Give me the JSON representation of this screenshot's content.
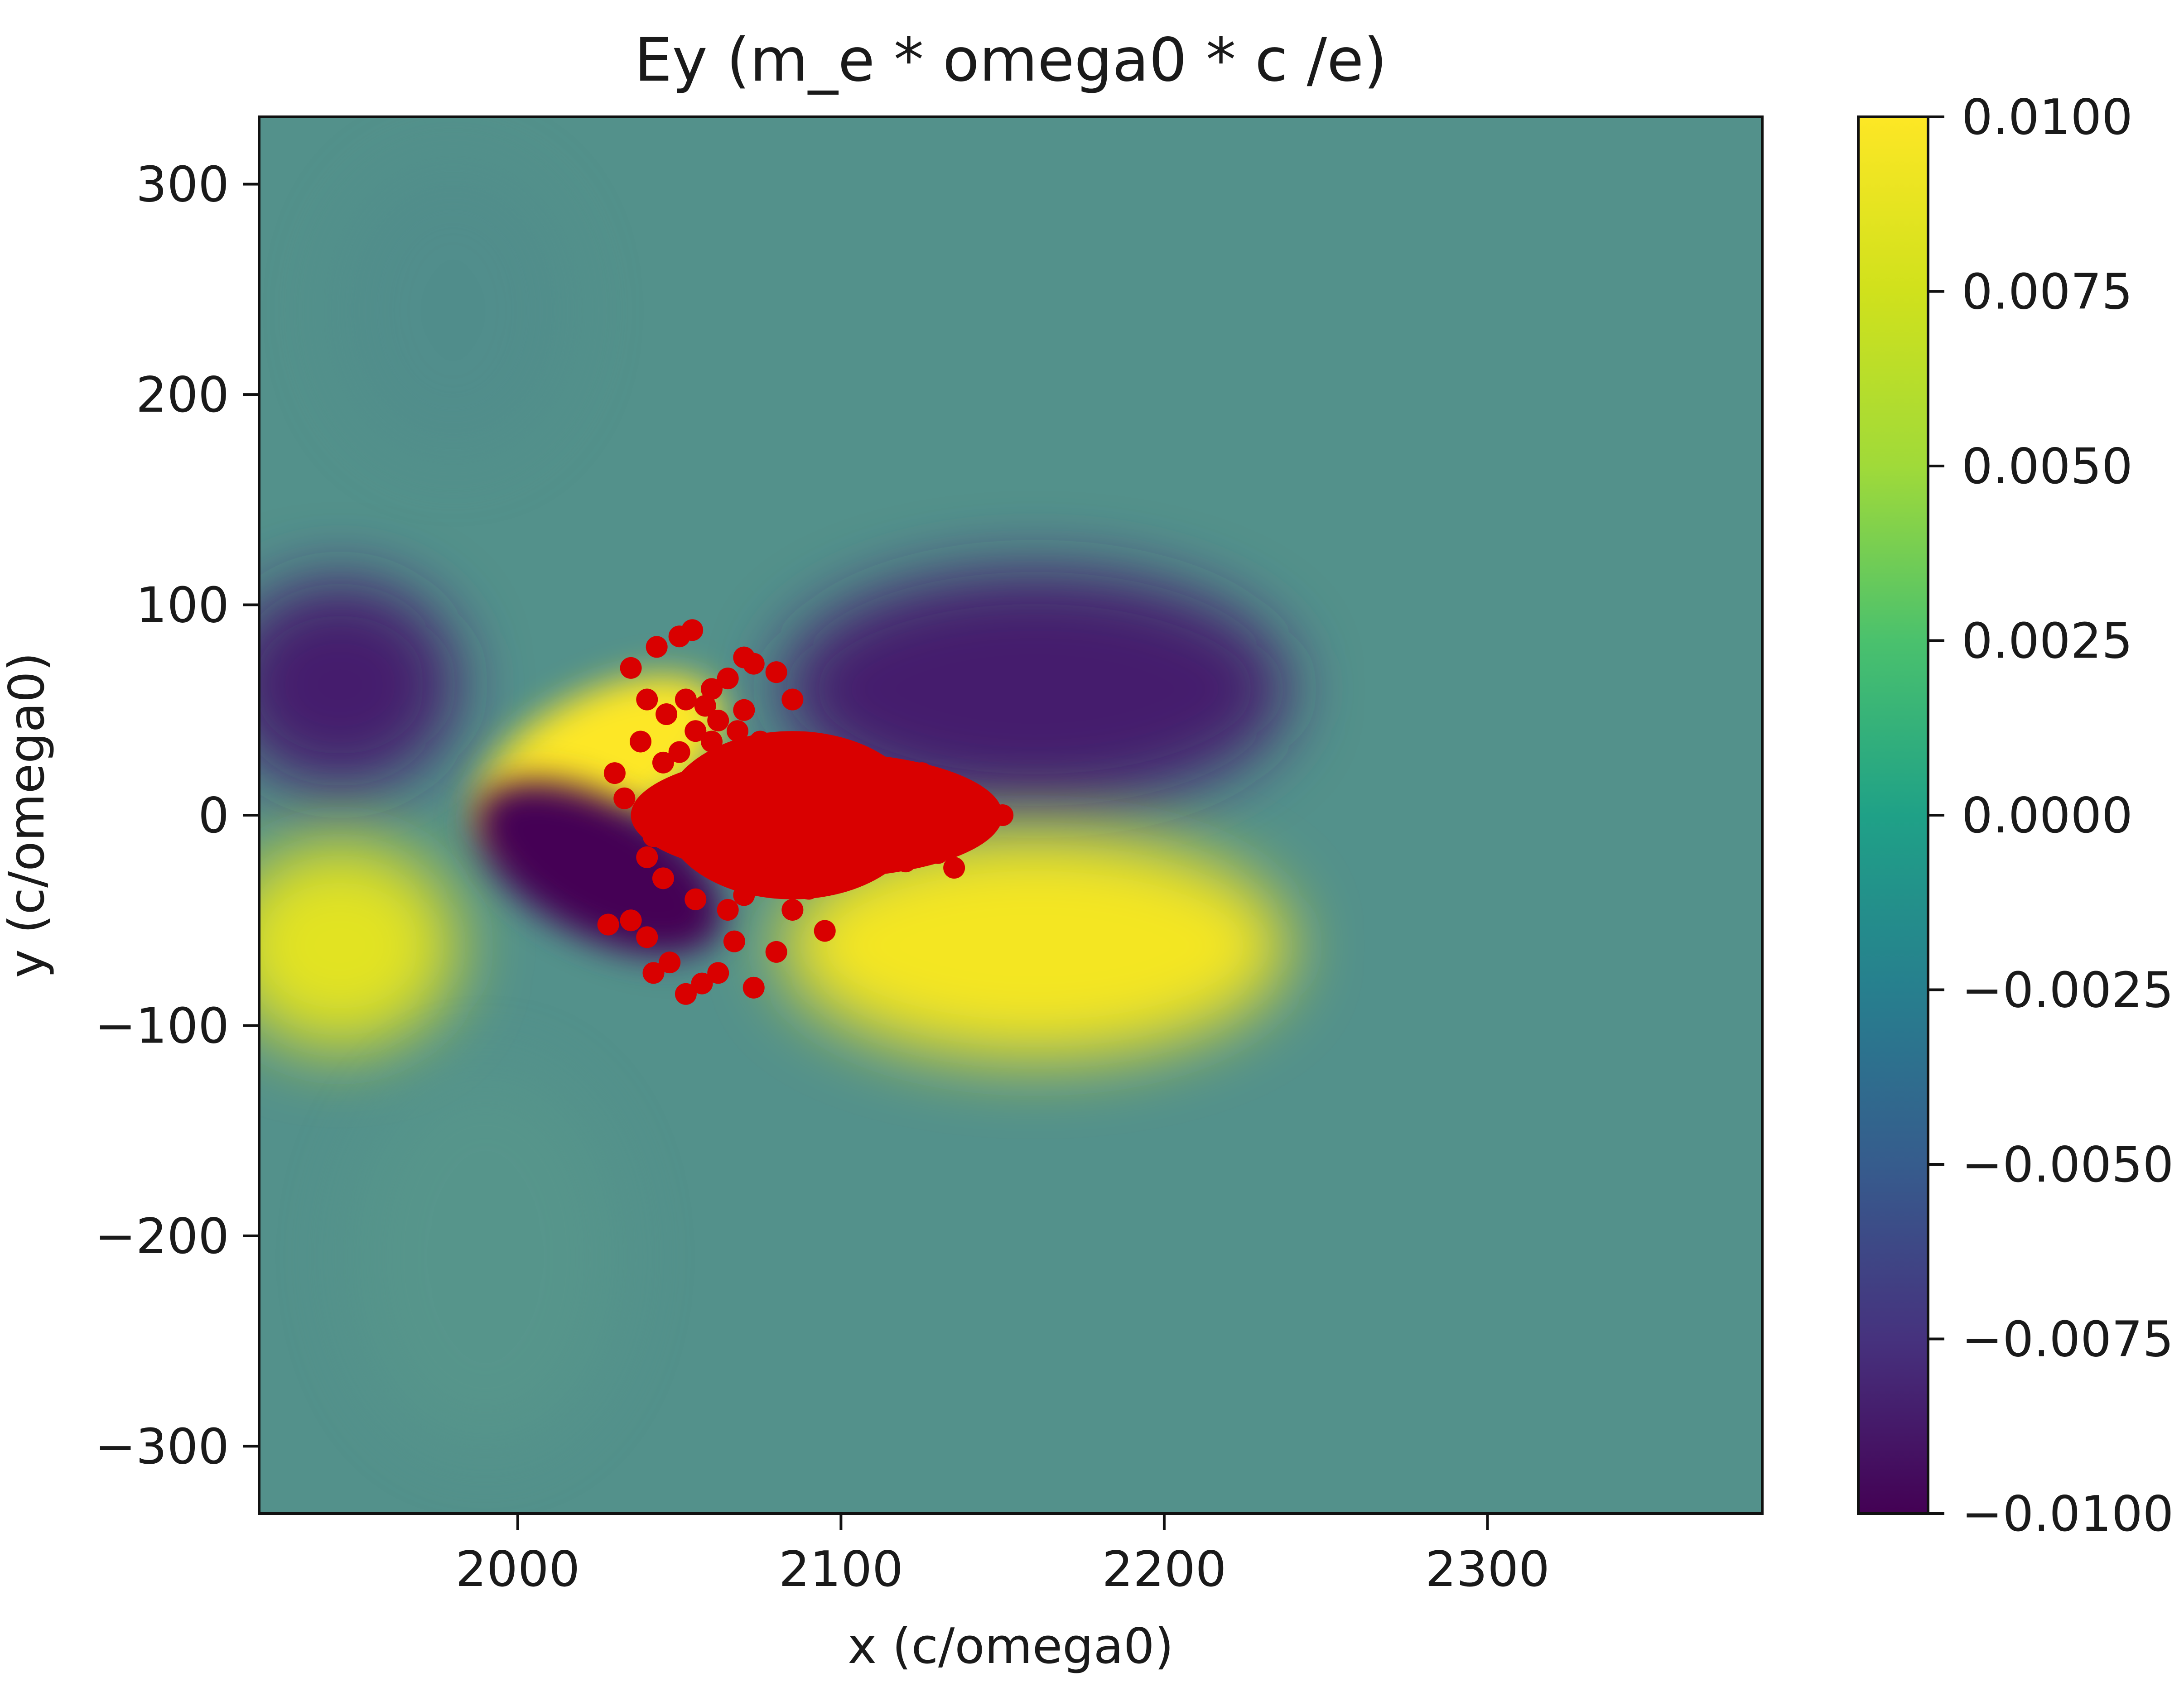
{
  "chart_data": {
    "type": "heatmap",
    "title": "Ey (m_e * omega0 * c /e)",
    "xlabel": "x (c/omega0)",
    "ylabel": "y (c/omega0)",
    "xlim": [
      1920,
      2385
    ],
    "ylim": [
      -332,
      332
    ],
    "x_ticks": [
      2000,
      2100,
      2200,
      2300
    ],
    "x_tick_labels": [
      "2000",
      "2100",
      "2200",
      "2300"
    ],
    "y_ticks": [
      300,
      200,
      100,
      0,
      -100,
      -200,
      -300
    ],
    "y_tick_labels": [
      "300",
      "200",
      "100",
      "0",
      "−100",
      "−200",
      "−300"
    ],
    "colormap": "viridis",
    "colorbar": {
      "range": [
        -0.01,
        0.01
      ],
      "ticks": [
        0.01,
        0.0075,
        0.005,
        0.0025,
        0.0,
        -0.0025,
        -0.005,
        -0.0075,
        -0.01
      ],
      "tick_labels": [
        "0.0100",
        "0.0075",
        "0.0050",
        "0.0025",
        "0.0000",
        "−0.0025",
        "−0.0050",
        "−0.0075",
        "−0.0100"
      ]
    },
    "field_features": [
      {
        "description": "negative lobe",
        "x": 1945,
        "y": 62,
        "value": -0.0085
      },
      {
        "description": "positive lobe",
        "x": 1945,
        "y": -62,
        "value": 0.0085
      },
      {
        "description": "negative lobe",
        "x": 2160,
        "y": 60,
        "value": -0.0085
      },
      {
        "description": "positive lobe",
        "x": 2160,
        "y": -62,
        "value": 0.0095
      },
      {
        "description": "positive wake",
        "x": 2025,
        "y": 25,
        "value": 0.01
      },
      {
        "description": "negative wake",
        "x": 2025,
        "y": -25,
        "value": -0.01
      }
    ],
    "particles": {
      "color": "#d90000",
      "core": {
        "x_range": [
          2035,
          2150
        ],
        "y_range": [
          -30,
          30
        ],
        "center": [
          2090,
          0
        ]
      },
      "points": [
        [
          2035,
          70
        ],
        [
          2040,
          55
        ],
        [
          2043,
          80
        ],
        [
          2050,
          85
        ],
        [
          2054,
          88
        ],
        [
          2046,
          48
        ],
        [
          2052,
          55
        ],
        [
          2060,
          60
        ],
        [
          2065,
          65
        ],
        [
          2070,
          75
        ],
        [
          2073,
          72
        ],
        [
          2080,
          68
        ],
        [
          2085,
          55
        ],
        [
          2070,
          50
        ],
        [
          2062,
          45
        ],
        [
          2055,
          40
        ],
        [
          2058,
          52
        ],
        [
          2038,
          35
        ],
        [
          2045,
          25
        ],
        [
          2030,
          20
        ],
        [
          2033,
          8
        ],
        [
          2028,
          -52
        ],
        [
          2035,
          -50
        ],
        [
          2040,
          -58
        ],
        [
          2042,
          -75
        ],
        [
          2047,
          -70
        ],
        [
          2052,
          -85
        ],
        [
          2057,
          -80
        ],
        [
          2062,
          -75
        ],
        [
          2067,
          -60
        ],
        [
          2073,
          -82
        ],
        [
          2080,
          -65
        ],
        [
          2085,
          -45
        ],
        [
          2095,
          -55
        ],
        [
          2090,
          -35
        ],
        [
          2100,
          -28
        ],
        [
          2110,
          -25
        ],
        [
          2120,
          -22
        ],
        [
          2130,
          -18
        ],
        [
          2135,
          -25
        ],
        [
          2140,
          -8
        ],
        [
          2145,
          -5
        ],
        [
          2150,
          0
        ],
        [
          2145,
          5
        ],
        [
          2140,
          10
        ],
        [
          2130,
          12
        ],
        [
          2125,
          20
        ],
        [
          2115,
          18
        ],
        [
          2105,
          22
        ],
        [
          2095,
          25
        ],
        [
          2085,
          30
        ],
        [
          2075,
          35
        ],
        [
          2068,
          40
        ],
        [
          2060,
          35
        ],
        [
          2050,
          30
        ],
        [
          2045,
          -30
        ],
        [
          2055,
          -40
        ],
        [
          2065,
          -45
        ],
        [
          2070,
          -38
        ],
        [
          2078,
          -30
        ],
        [
          2040,
          -20
        ],
        [
          2042,
          -10
        ],
        [
          2048,
          12
        ],
        [
          2078,
          15
        ],
        [
          2088,
          -15
        ],
        [
          2100,
          5
        ],
        [
          2112,
          -5
        ],
        [
          2122,
          8
        ],
        [
          2135,
          2
        ],
        [
          2092,
          10
        ]
      ]
    }
  }
}
